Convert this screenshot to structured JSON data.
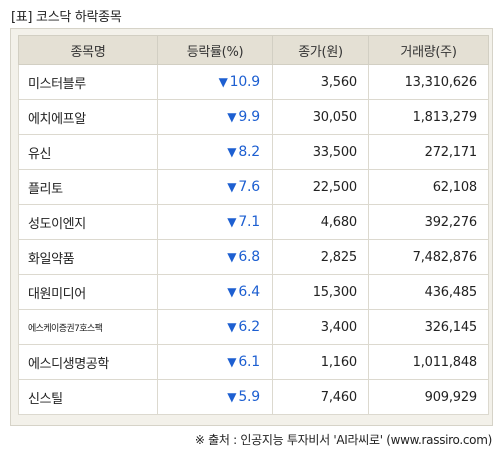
{
  "title": "[표] 코스닥 하락종목",
  "columns": [
    "종목명",
    "등락률(%)",
    "종가(원)",
    "거래량(주)"
  ],
  "rows": [
    {
      "name": "미스터블루",
      "arrow": "▼",
      "rate": "10.9",
      "price": "3,560",
      "volume": "13,310,626"
    },
    {
      "name": "에치에프알",
      "arrow": "▼",
      "rate": "9.9",
      "price": "30,050",
      "volume": "1,813,279"
    },
    {
      "name": "유신",
      "arrow": "▼",
      "rate": "8.2",
      "price": "33,500",
      "volume": "272,171"
    },
    {
      "name": "플리토",
      "arrow": "▼",
      "rate": "7.6",
      "price": "22,500",
      "volume": "62,108"
    },
    {
      "name": "성도이엔지",
      "arrow": "▼",
      "rate": "7.1",
      "price": "4,680",
      "volume": "392,276"
    },
    {
      "name": "화일약품",
      "arrow": "▼",
      "rate": "6.8",
      "price": "2,825",
      "volume": "7,482,876"
    },
    {
      "name": "대원미디어",
      "arrow": "▼",
      "rate": "6.4",
      "price": "15,300",
      "volume": "436,485"
    },
    {
      "name": "에스케이증권7호스팩",
      "arrow": "▼",
      "rate": "6.2",
      "price": "3,400",
      "volume": "326,145"
    },
    {
      "name": "에스디생명공학",
      "arrow": "▼",
      "rate": "6.1",
      "price": "1,160",
      "volume": "1,011,848"
    },
    {
      "name": "신스틸",
      "arrow": "▼",
      "rate": "5.9",
      "price": "7,460",
      "volume": "909,929"
    }
  ],
  "source": "※ 출처 : 인공지능 투자비서 'AI라씨로' (www.rassiro.com)",
  "colors": {
    "down": "#1d5fd1",
    "header_bg": "#e4e0d4",
    "panel_bg": "#f3f1ea"
  }
}
